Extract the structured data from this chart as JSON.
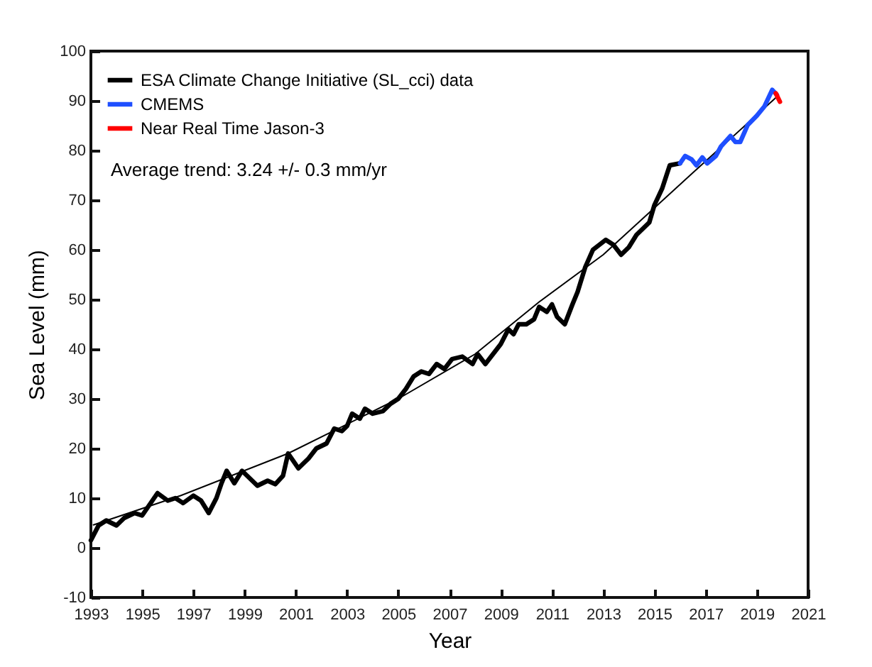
{
  "chart_data": {
    "type": "line",
    "xlabel": "Year",
    "ylabel": "Sea Level (mm)",
    "xlim": [
      1993,
      2021
    ],
    "xticks": [
      1993,
      1995,
      1997,
      1999,
      2001,
      2003,
      2005,
      2007,
      2009,
      2011,
      2013,
      2015,
      2017,
      2019,
      2021
    ],
    "ylim": [
      -10,
      100
    ],
    "yticks": [
      -10,
      0,
      10,
      20,
      30,
      40,
      50,
      60,
      70,
      80,
      90,
      100
    ],
    "grid": false,
    "legend": "top left",
    "marker": "none",
    "line_style": "solid",
    "annotations": [
      "Average trend: 3.24 +/- 0.3 mm/yr"
    ],
    "series": [
      {
        "name": "ESA Climate Change Initiative (SL_cci) data",
        "color": "#000000",
        "x": [
          1993.0,
          1993.3,
          1993.6,
          1994.0,
          1994.3,
          1994.7,
          1995.0,
          1995.4,
          1995.6,
          1996.0,
          1996.3,
          1996.6,
          1997.0,
          1997.3,
          1997.6,
          1997.9,
          1998.1,
          1998.3,
          1998.6,
          1998.9,
          1999.2,
          1999.5,
          1999.9,
          2000.2,
          2000.5,
          2000.7,
          2001.1,
          2001.5,
          2001.8,
          2002.2,
          2002.5,
          2002.8,
          2003.0,
          2003.2,
          2003.5,
          2003.7,
          2004.0,
          2004.4,
          2004.7,
          2005.0,
          2005.3,
          2005.6,
          2005.9,
          2006.2,
          2006.5,
          2006.8,
          2007.1,
          2007.5,
          2007.9,
          2008.1,
          2008.4,
          2008.7,
          2009.0,
          2009.3,
          2009.5,
          2009.7,
          2010.0,
          2010.3,
          2010.5,
          2010.8,
          2011.0,
          2011.2,
          2011.5,
          2011.8,
          2012.0,
          2012.3,
          2012.6,
          2013.1,
          2013.4,
          2013.7,
          2014.0,
          2014.3,
          2014.8,
          2015.0,
          2015.3,
          2015.6,
          2016.0
        ],
        "values": [
          1.5,
          4.5,
          5.5,
          4.5,
          6,
          7,
          6.5,
          9.5,
          11,
          9.5,
          10,
          9,
          10.5,
          9.5,
          7,
          10,
          13,
          15.5,
          13,
          15.5,
          14,
          12.5,
          13.5,
          12.8,
          14.5,
          19,
          16,
          18,
          20,
          21,
          24,
          23.5,
          24.5,
          27,
          26,
          28,
          27,
          27.5,
          29,
          30,
          32,
          34.5,
          35.5,
          35,
          37,
          36,
          38,
          38.5,
          37,
          39,
          37,
          39,
          41,
          44,
          43,
          45,
          45,
          46,
          48.5,
          47.5,
          49,
          46.5,
          45,
          49,
          51.5,
          56.5,
          60,
          62,
          61,
          59,
          60.5,
          63,
          65.5,
          69,
          72.3,
          77,
          77.4
        ]
      },
      {
        "name": "CMEMS",
        "color": "#1f4fff",
        "x": [
          2016.0,
          2016.2,
          2016.45,
          2016.64,
          2016.87,
          2017.06,
          2017.4,
          2017.6,
          2017.97,
          2018.16,
          2018.35,
          2018.64,
          2019.0,
          2019.3,
          2019.6,
          2019.78
        ],
        "values": [
          77.4,
          78.9,
          78.2,
          77,
          78.6,
          77.4,
          78.9,
          80.8,
          82.9,
          81.7,
          81.7,
          85.1,
          87,
          88.9,
          92.2,
          91.2
        ]
      },
      {
        "name": "Near Real Time Jason-3",
        "color": "#ff0000",
        "x": [
          2019.74,
          2019.9
        ],
        "values": [
          91.5,
          89.8
        ]
      },
      {
        "type": "line",
        "color": "#000000",
        "x": [
          1993.1,
          1996.5,
          2000.7,
          2005,
          2008,
          2010.5,
          2013,
          2016.5,
          2019.8
        ],
        "values": [
          4.6,
          10.5,
          19,
          30,
          39,
          49.5,
          59,
          75.5,
          90.9
        ]
      }
    ]
  }
}
